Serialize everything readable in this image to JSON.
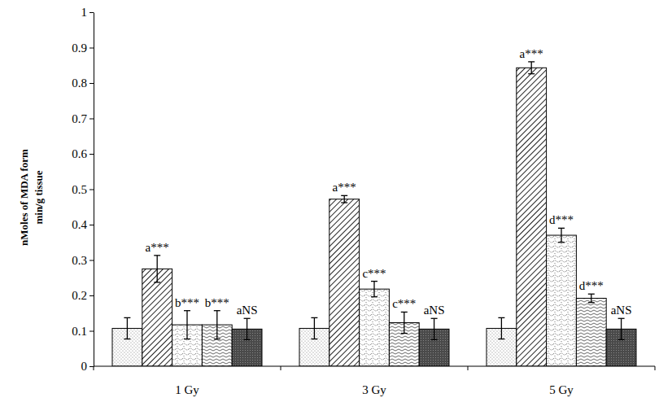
{
  "chart_data": {
    "type": "bar",
    "y_label": [
      "nMoles of MDA form",
      "min/g tissue"
    ],
    "categories": [
      "1 Gy",
      "3 Gy",
      "5 Gy"
    ],
    "ylim": [
      0,
      1
    ],
    "yticks": [
      0,
      0.1,
      0.2,
      0.3,
      0.4,
      0.5,
      0.6,
      0.7,
      0.8,
      0.9,
      1
    ],
    "grid": false,
    "series": [
      {
        "color": "#7a7a7a",
        "values": [
          0.107,
          0.107,
          0.107
        ],
        "errors": [
          0.03,
          0.03,
          0.03
        ]
      },
      {
        "color": "#222222",
        "values": [
          0.275,
          0.472,
          0.843
        ],
        "errors": [
          0.038,
          0.01,
          0.017
        ],
        "annotations": [
          "a***",
          "a***",
          "a***"
        ]
      },
      {
        "color": "#444444",
        "values": [
          0.117,
          0.218,
          0.37
        ],
        "errors": [
          0.04,
          0.022,
          0.02
        ],
        "annotations": [
          "b***",
          "c***",
          "d***"
        ]
      },
      {
        "color": "#555555",
        "values": [
          0.117,
          0.123,
          0.192
        ],
        "errors": [
          0.04,
          0.03,
          0.012
        ],
        "annotations": [
          "b***",
          "c***",
          "d***"
        ]
      },
      {
        "color": "#4a4a4a",
        "values": [
          0.105,
          0.105,
          0.105
        ],
        "errors": [
          0.03,
          0.03,
          0.03
        ],
        "annotations": [
          "aNS",
          "aNS",
          "aNS"
        ]
      }
    ]
  }
}
